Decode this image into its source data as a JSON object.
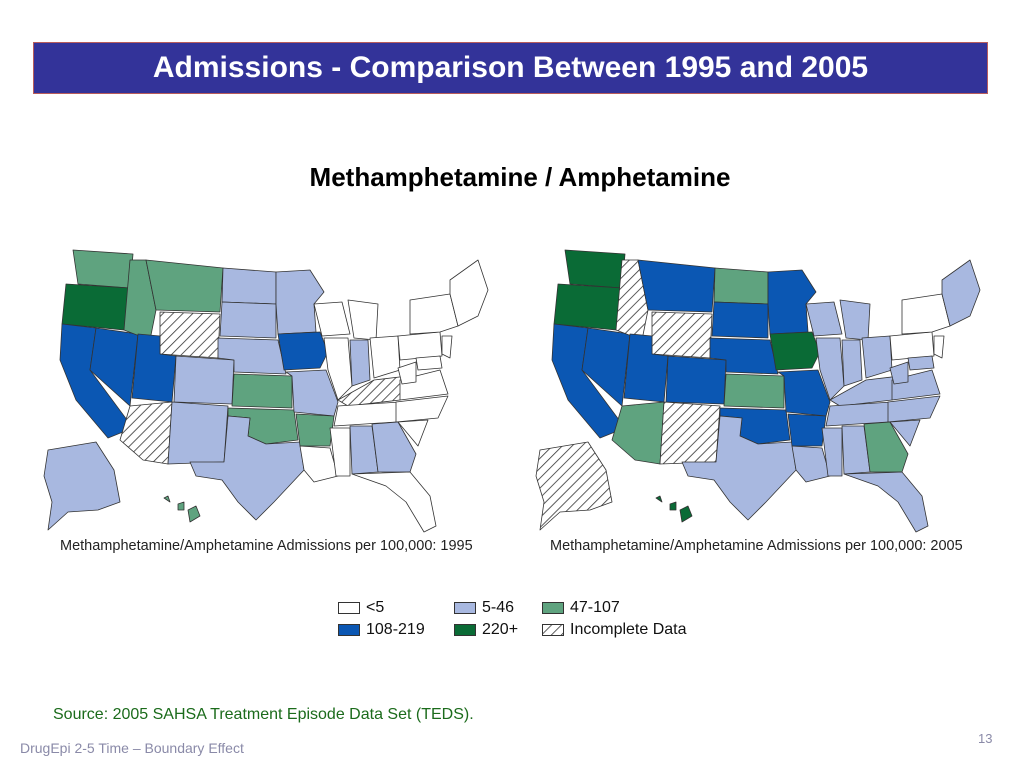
{
  "header": {
    "title": "Admissions - Comparison Between 1995 and 2005"
  },
  "subtitle": "Methamphetamine / Amphetamine",
  "maps": [
    {
      "caption": "Methamphetamine/Amphetamine Admissions per 100,000: 1995"
    },
    {
      "caption": "Methamphetamine/Amphetamine Admissions per 100,000: 2005"
    }
  ],
  "legend": {
    "items": [
      {
        "label": "<5",
        "color": "#ffffff"
      },
      {
        "label": "5-46",
        "color": "#a8b8e0"
      },
      {
        "label": "47-107",
        "color": "#5fa37f"
      },
      {
        "label": "108-219",
        "color": "#0b57b3"
      },
      {
        "label": "220+",
        "color": "#0a6b36"
      },
      {
        "label": "Incomplete Data",
        "color": "hatch"
      }
    ]
  },
  "source": "Source: 2005 SAHSA Treatment Episode Data Set (TEDS).",
  "footer": {
    "text": "DrugEpi 2-5  Time – Boundary Effect",
    "page": "13"
  }
}
